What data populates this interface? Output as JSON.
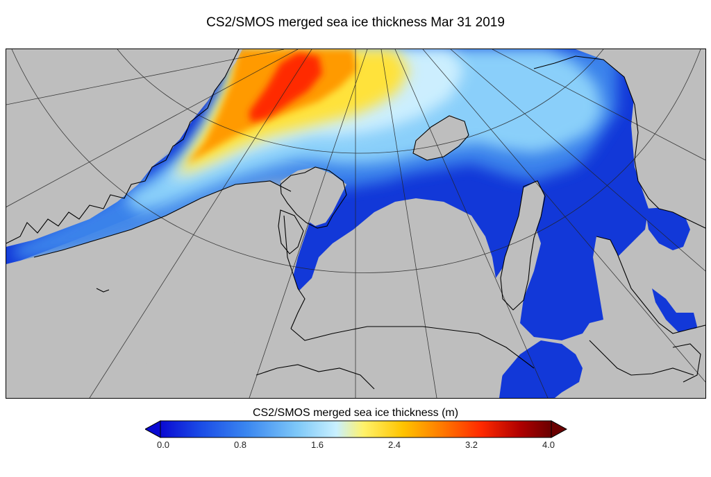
{
  "title": "CS2/SMOS merged sea ice thickness Mar 31 2019",
  "colorbar": {
    "label": "CS2/SMOS merged sea ice thickness (m)",
    "ticks": [
      "0.0",
      "0.8",
      "1.6",
      "2.4",
      "3.2",
      "4.0"
    ],
    "min": 0.0,
    "max": 4.0,
    "colors": [
      "#0a0ad2",
      "#1a4ae6",
      "#3a86f0",
      "#7ec8f8",
      "#c8f0ff",
      "#fff26a",
      "#ffc400",
      "#ff7a00",
      "#ff2a00",
      "#b00000",
      "#6a0000"
    ]
  },
  "map": {
    "land_color": "#bebebe",
    "coastline_color": "#000000",
    "projection": "north-polar-stereographic"
  }
}
